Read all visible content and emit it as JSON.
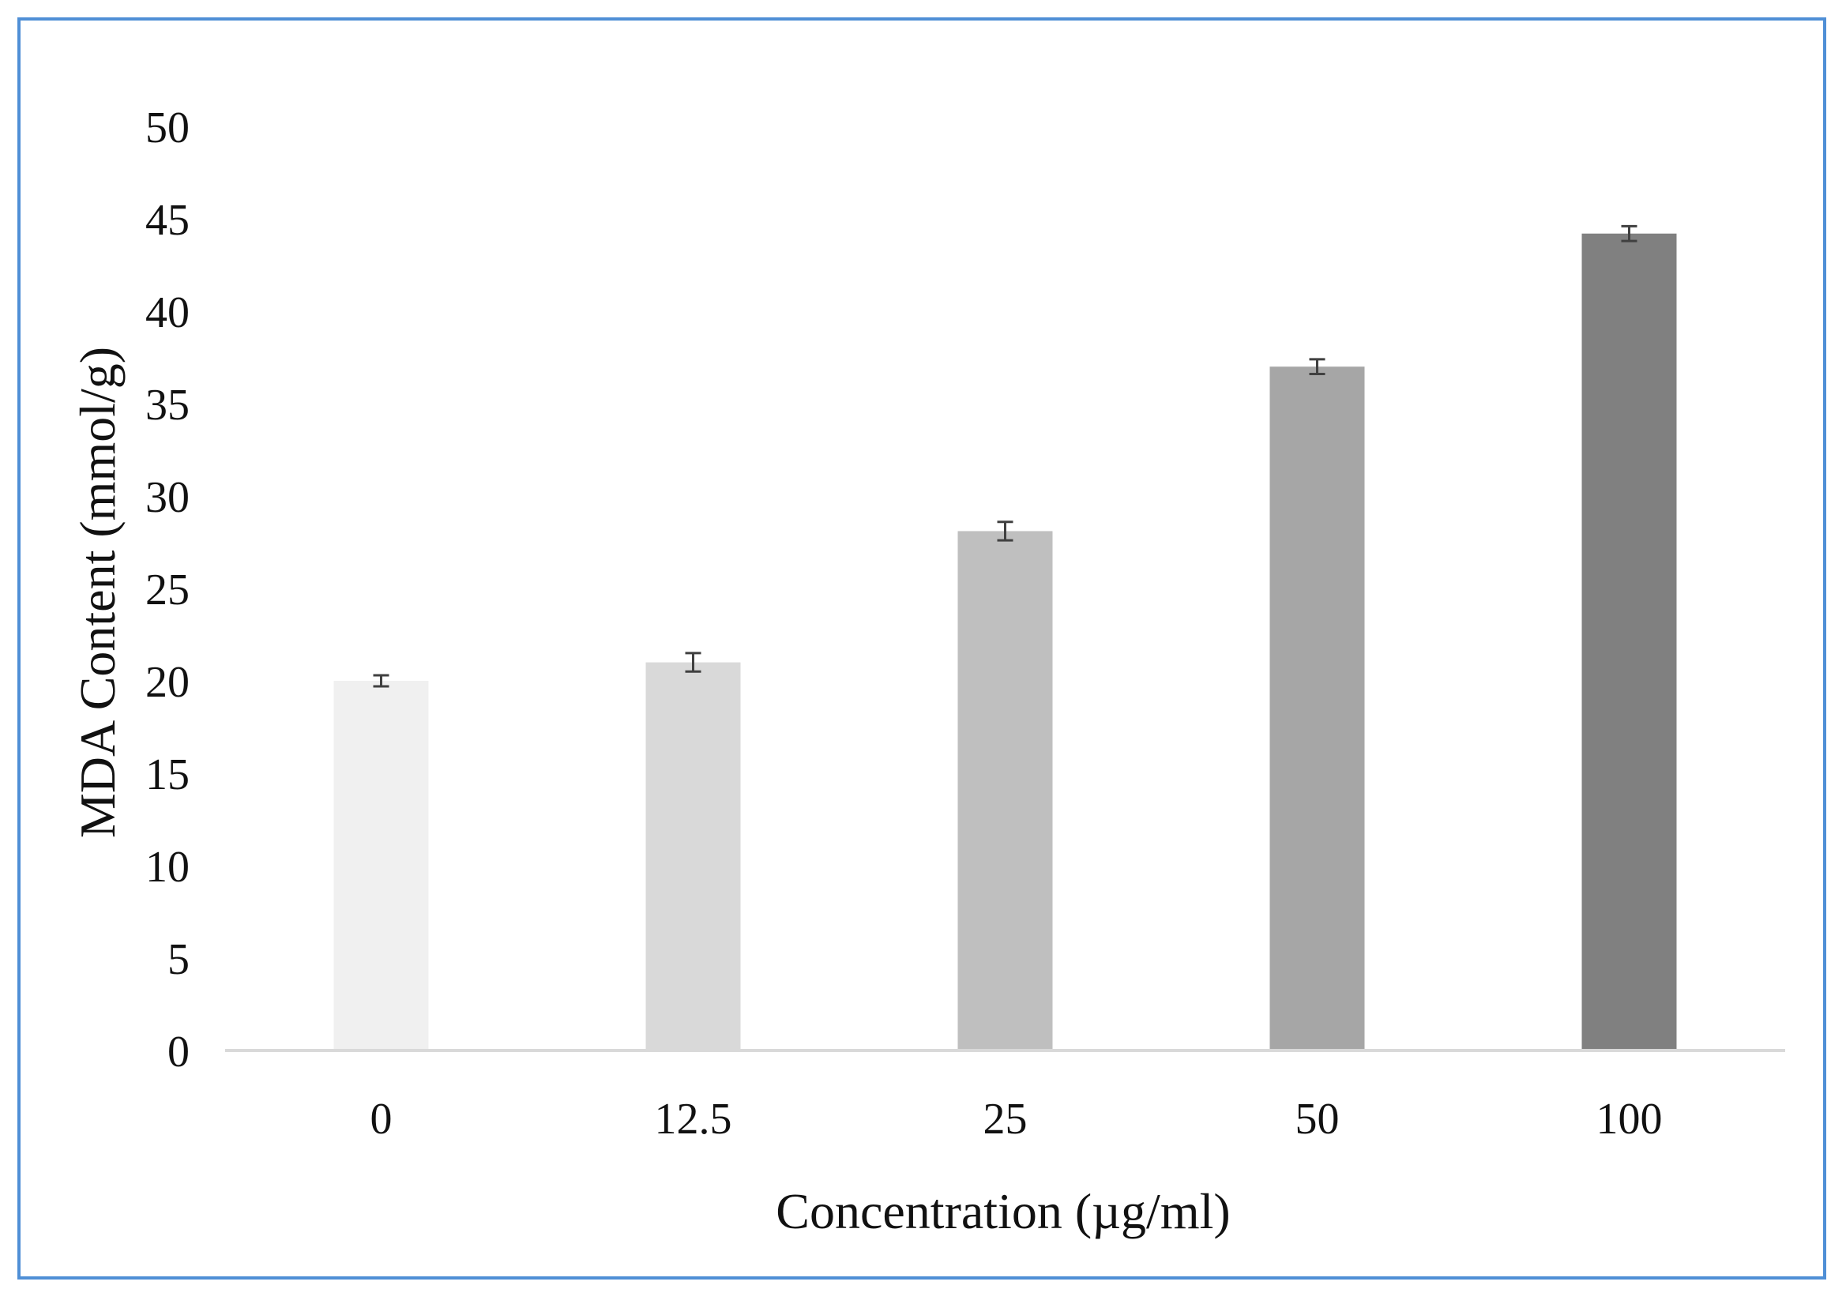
{
  "chart_data": {
    "type": "bar",
    "categories": [
      "0",
      "12.5",
      "25",
      "50",
      "100"
    ],
    "values": [
      20,
      21,
      28.1,
      37,
      44.2
    ],
    "errors": [
      0.3,
      0.5,
      0.5,
      0.4,
      0.4
    ],
    "bar_colors": [
      "#f0f0f0",
      "#d9d9d9",
      "#bfbfbf",
      "#a6a6a6",
      "#808080"
    ],
    "title": "",
    "xlabel": "Concentration (µg/ml)",
    "ylabel": "MDA Content (mmol/g)",
    "ylim": [
      0,
      50
    ],
    "yticks": [
      "0",
      "5",
      "10",
      "15",
      "20",
      "25",
      "30",
      "35",
      "40",
      "45",
      "50"
    ],
    "grid": false,
    "frame_color": "#4f8fd6",
    "axis_color": "#d9d9d9",
    "errorbar_color": "#404040"
  }
}
